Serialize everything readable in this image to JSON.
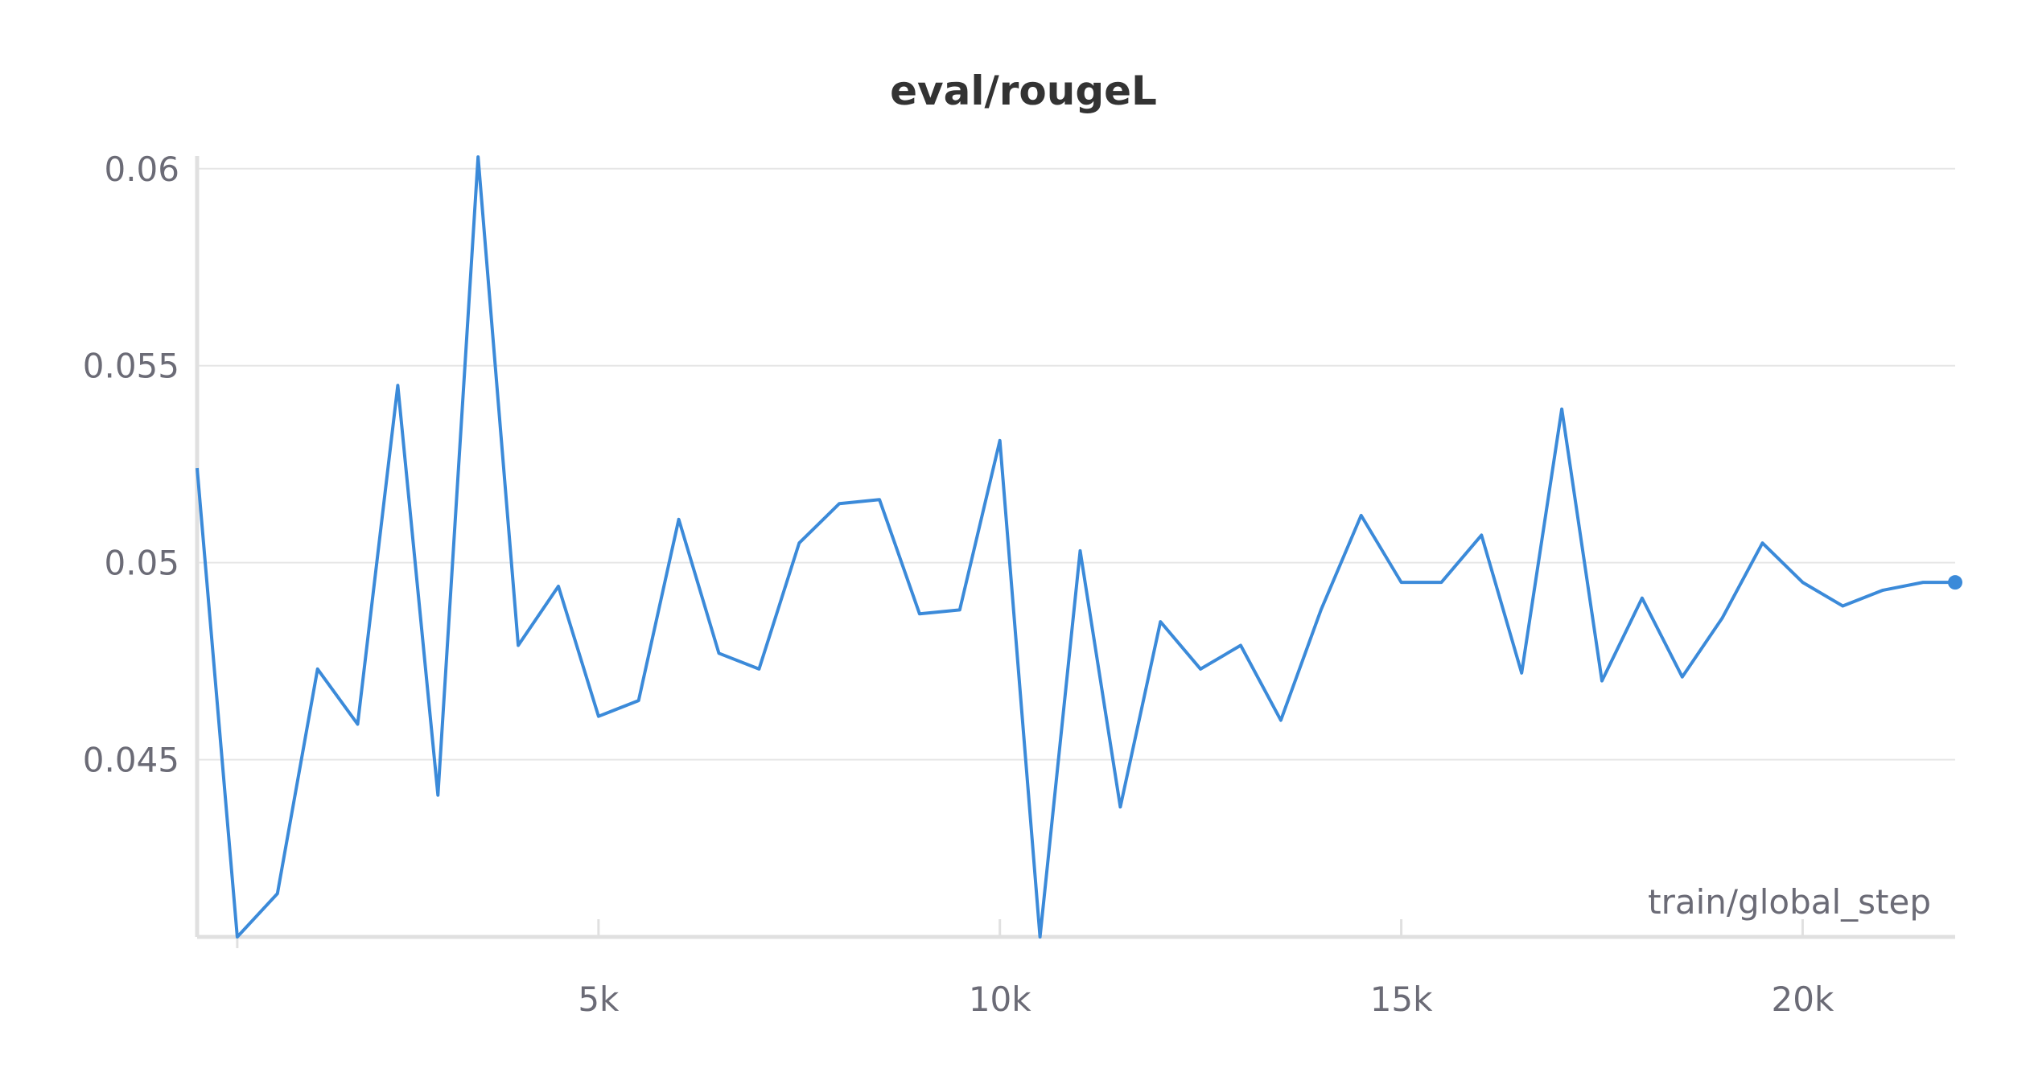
{
  "chart_data": {
    "type": "line",
    "title": "eval/rougeL",
    "xlabel": "train/global_step",
    "ylabel": "",
    "xlim": [
      0,
      21900
    ],
    "ylim": [
      0.0405,
      0.0602
    ],
    "x_ticks": [
      5000,
      10000,
      15000,
      20000
    ],
    "x_tick_labels": [
      "5k",
      "10k",
      "15k",
      "20k"
    ],
    "y_ticks": [
      0.045,
      0.05,
      0.055,
      0.06
    ],
    "y_tick_labels": [
      "0.045",
      "0.05",
      "0.055",
      "0.06"
    ],
    "grid": true,
    "legend": false,
    "series": [
      {
        "color": "#3b8ad9",
        "x": [
          0,
          500,
          1000,
          1500,
          2000,
          2500,
          3000,
          3500,
          4000,
          4500,
          5000,
          5500,
          6000,
          6500,
          7000,
          7500,
          8000,
          8500,
          9000,
          9500,
          10000,
          10500,
          11000,
          11500,
          12000,
          12500,
          13000,
          13500,
          14000,
          14500,
          15000,
          15500,
          16000,
          16500,
          17000,
          17500,
          18000,
          18500,
          19000,
          19500,
          20000,
          20500,
          21000,
          21500,
          21900
        ],
        "y": [
          0.0524,
          0.0405,
          0.0416,
          0.0473,
          0.0459,
          0.0545,
          0.0441,
          0.0603,
          0.0479,
          0.0494,
          0.0461,
          0.0465,
          0.0511,
          0.0477,
          0.0473,
          0.0505,
          0.0515,
          0.0516,
          0.0487,
          0.0488,
          0.0531,
          0.0405,
          0.0503,
          0.0438,
          0.0485,
          0.0473,
          0.0479,
          0.046,
          0.0488,
          0.0512,
          0.0495,
          0.0495,
          0.0507,
          0.0472,
          0.0539,
          0.047,
          0.0491,
          0.0471,
          0.0486,
          0.0505,
          0.0495,
          0.0489,
          0.0493,
          0.0495,
          0.0495
        ]
      }
    ]
  }
}
